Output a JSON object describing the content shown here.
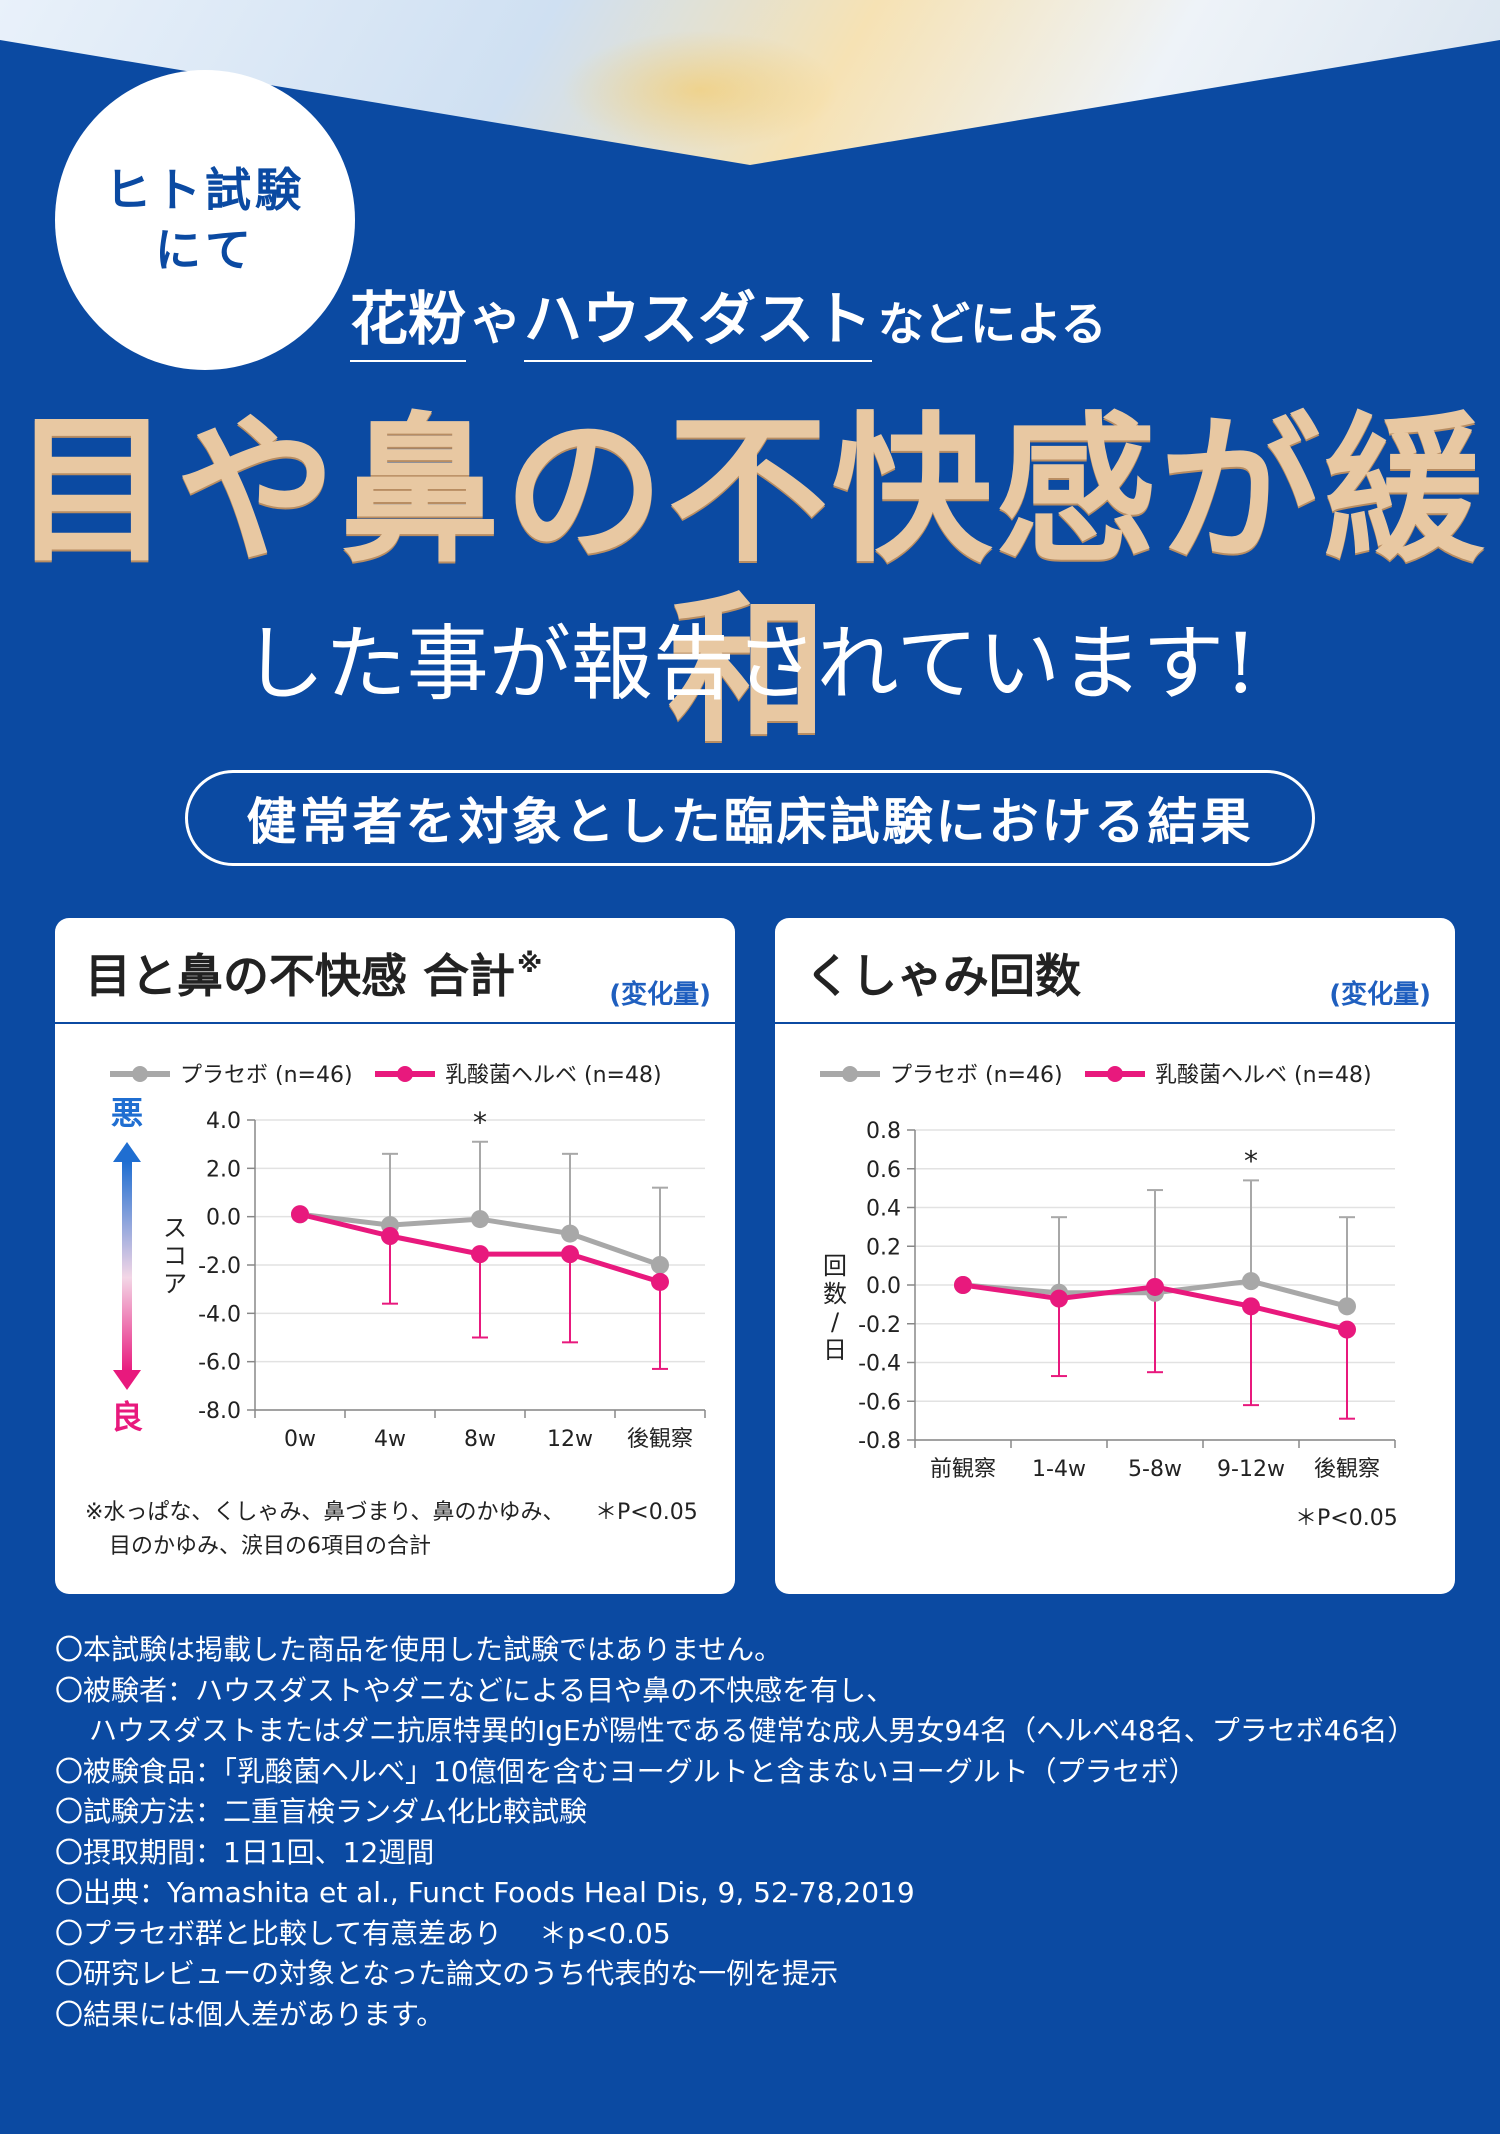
{
  "badge": {
    "line1": "ヒト試験",
    "line2": "にて"
  },
  "subhead": {
    "part1": "花粉",
    "part2": "や",
    "part3": "ハウスダスト",
    "part4": "などによる"
  },
  "headline": "目や鼻の不快感が緩和",
  "headline2": "した事が報告されています!",
  "pill": "健常者を対象とした臨床試験における結果",
  "colors": {
    "background": "#0b4aa2",
    "placebo": "#a8a8a8",
    "herbe": "#e8197d",
    "gold": "#e8c8a2"
  },
  "chart_data": [
    {
      "type": "line",
      "title": "目と鼻の不快感 合計",
      "title_mark": "※",
      "unit": "(変化量)",
      "ylabel": "スコア",
      "y_bad": "悪",
      "y_good": "良",
      "categories": [
        "0w",
        "4w",
        "8w",
        "12w",
        "後観察"
      ],
      "ylim": [
        -8.0,
        4.0
      ],
      "yticks": [
        "4.0",
        "2.0",
        "0.0",
        "-2.0",
        "-4.0",
        "-6.0",
        "-8.0"
      ],
      "series": [
        {
          "name": "プラセボ (n=46)",
          "values": [
            0.1,
            -0.35,
            -0.1,
            -0.7,
            -2.0
          ],
          "err_upper": [
            null,
            2.6,
            3.1,
            2.6,
            1.2
          ]
        },
        {
          "name": "乳酸菌ヘルベ (n=48)",
          "values": [
            0.1,
            -0.8,
            -1.55,
            -1.55,
            -2.7
          ],
          "err_lower": [
            null,
            -3.6,
            -5.0,
            -5.2,
            -6.3
          ]
        }
      ],
      "significance": {
        "category": "8w",
        "mark": "*"
      },
      "note_line1": "※水っぱな、くしゃみ、鼻づまり、鼻のかゆみ、",
      "note_line2": "目のかゆみ、涙目の6項目の合計",
      "p_value": "＊P<0.05"
    },
    {
      "type": "line",
      "title": "くしゃみ回数",
      "unit": "(変化量)",
      "ylabel": "回数/日",
      "categories": [
        "前観察",
        "1-4w",
        "5-8w",
        "9-12w",
        "後観察"
      ],
      "ylim": [
        -0.8,
        0.8
      ],
      "yticks": [
        "0.8",
        "0.6",
        "0.4",
        "0.2",
        "0.0",
        "-0.2",
        "-0.4",
        "-0.6",
        "-0.8"
      ],
      "series": [
        {
          "name": "プラセボ (n=46)",
          "values": [
            0.0,
            -0.04,
            -0.04,
            0.02,
            -0.11
          ],
          "err_upper": [
            null,
            0.35,
            0.49,
            0.54,
            0.35
          ]
        },
        {
          "name": "乳酸菌ヘルベ (n=48)",
          "values": [
            0.0,
            -0.07,
            -0.01,
            -0.11,
            -0.23
          ],
          "err_lower": [
            null,
            -0.47,
            -0.45,
            -0.62,
            -0.69
          ]
        }
      ],
      "significance": {
        "category": "9-12w",
        "mark": "*"
      },
      "p_value": "＊P<0.05"
    }
  ],
  "footnotes": [
    "〇本試験は掲載した商品を使用した試験ではありません。",
    "〇被験者：ハウスダストやダニなどによる目や鼻の不快感を有し、",
    "ハウスダストまたはダニ抗原特異的IgEが陽性である健常な成人男女94名（ヘルベ48名、プラセボ46名）",
    "〇被験食品：「乳酸菌ヘルベ」10億個を含むヨーグルトと含まないヨーグルト（プラセボ）",
    "〇試験方法：二重盲検ランダム化比較試験",
    "〇摂取期間：1日1回、12週間",
    "〇出典：Yamashita et al., Funct Foods Heal Dis, 9, 52-78,2019",
    "〇プラセボ群と比較して有意差あり　 ＊p<0.05",
    "〇研究レビューの対象となった論文のうち代表的な一例を提示",
    "〇結果には個人差があります。"
  ]
}
